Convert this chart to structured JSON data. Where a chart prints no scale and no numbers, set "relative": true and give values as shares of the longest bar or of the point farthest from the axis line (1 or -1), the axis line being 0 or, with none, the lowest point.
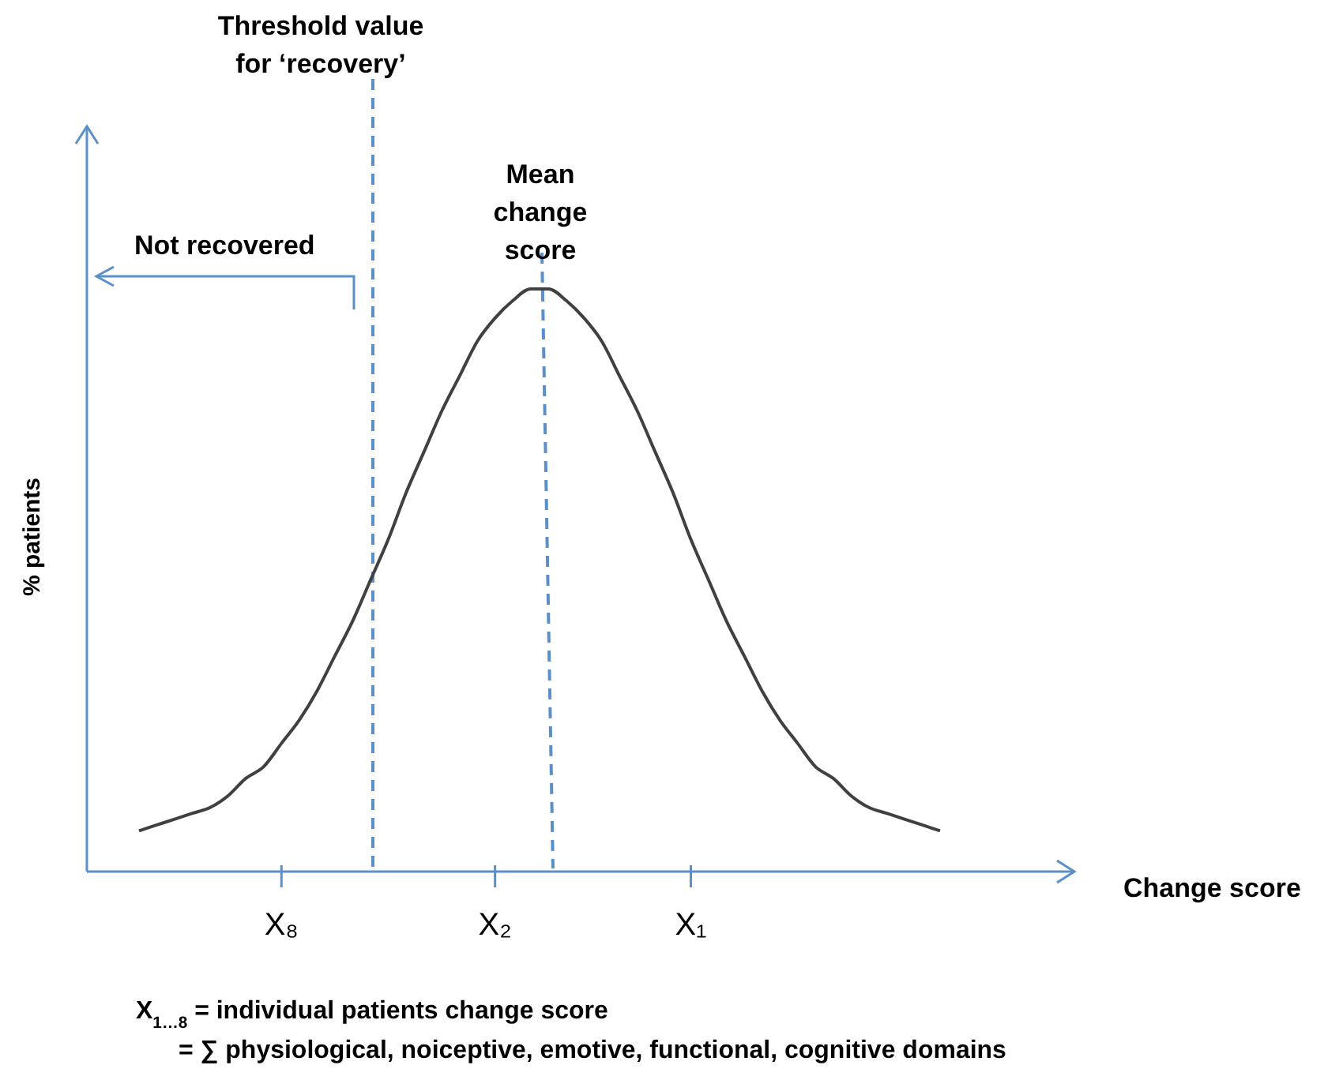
{
  "chart_data": {
    "type": "line",
    "relative": true,
    "ylabel": "% patients",
    "categories": [
      null,
      null,
      null,
      null,
      null,
      null,
      null,
      null,
      "X₈",
      null,
      null,
      null,
      null,
      null,
      null,
      null,
      null,
      null,
      null,
      null,
      "X₂",
      null,
      null,
      null,
      null,
      null,
      null,
      null,
      null,
      null,
      null,
      "X₁",
      null,
      null,
      null,
      null,
      null,
      null,
      null,
      null,
      null,
      null,
      null,
      null,
      null,
      null
    ],
    "series": [
      {
        "color": "#404040",
        "values": [
          0.07,
          0.08,
          0.09,
          0.1,
          0.11,
          0.13,
          0.16,
          0.18,
          0.22,
          0.26,
          0.31,
          0.37,
          0.43,
          0.5,
          0.57,
          0.65,
          0.72,
          0.79,
          0.85,
          0.91,
          0.95,
          0.98,
          1,
          1,
          0.98,
          0.95,
          0.91,
          0.85,
          0.79,
          0.72,
          0.65,
          0.57,
          0.5,
          0.43,
          0.37,
          0.31,
          0.26,
          0.22,
          0.18,
          0.16,
          0.13,
          0.11,
          0.1,
          0.09,
          0.08,
          0.07
        ]
      }
    ],
    "annotations": [
      "Not recovered",
      "X$_{1…8}$ = individual patients change score",
      "= ∑ physiological, noiceptive, emotive, functional, cognitive domains",
      "Change score",
      "Threshold value for ‘recovery’",
      "Mean change score"
    ]
  }
}
